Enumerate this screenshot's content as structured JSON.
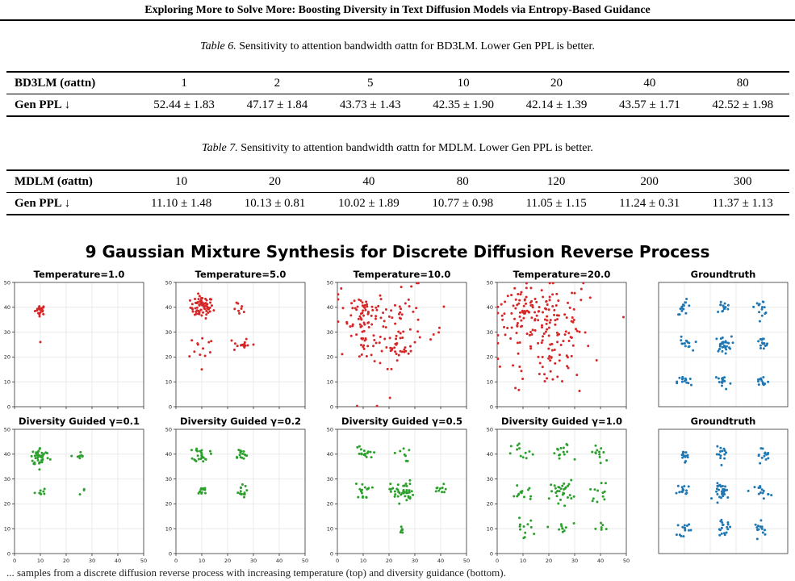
{
  "header": {
    "title": "Exploring More to Solve More: Boosting Diversity in Text Diffusion Models via Entropy-Based Guidance"
  },
  "table6": {
    "caption_label": "Table 6.",
    "caption_text": "Sensitivity to attention bandwidth σattn for BD3LM. Lower Gen PPL is better.",
    "row_header_label": "BD3LM (σattn)",
    "columns": [
      "1",
      "2",
      "5",
      "10",
      "20",
      "40",
      "80"
    ],
    "row_label": "Gen PPL ↓",
    "values": [
      "52.44 ± 1.83",
      "47.17 ± 1.84",
      "43.73 ± 1.43",
      "42.35 ± 1.90",
      "42.14 ± 1.39",
      "43.57 ± 1.71",
      "42.52 ± 1.98"
    ]
  },
  "table7": {
    "caption_label": "Table 7.",
    "caption_text": "Sensitivity to attention bandwidth σattn for MDLM. Lower Gen PPL is better.",
    "row_header_label": "MDLM (σattn)",
    "columns": [
      "10",
      "20",
      "40",
      "80",
      "120",
      "200",
      "300"
    ],
    "row_label": "Gen PPL ↓",
    "values": [
      "11.10 ± 1.48",
      "10.13 ± 0.81",
      "10.02 ± 1.89",
      "10.77 ± 0.98",
      "11.05 ± 1.15",
      "11.24 ± 0.31",
      "11.37 ± 1.13"
    ]
  },
  "figure": {
    "title": "9 Gaussian Mixture Synthesis for Discrete Diffusion Reverse Process",
    "bottom_caption": "... samples from a discrete diffusion reverse process with increasing temperature (top) and diversity guidance (bottom).",
    "colors": {
      "temperature": "#d62728",
      "guided": "#2ca02c",
      "groundtruth": "#1f77b4"
    }
  },
  "chart_data": [
    {
      "type": "scatter",
      "title": "Temperature=1.0",
      "xlim": [
        0,
        50
      ],
      "ylim": [
        0,
        50
      ],
      "xticks": [
        "0",
        "10",
        "20",
        "30",
        "40",
        "50"
      ],
      "yticks": [
        "0",
        "10",
        "20",
        "30",
        "40",
        "50"
      ],
      "grid": true,
      "series": [
        {
          "color": "#d62728",
          "clusters": [
            {
              "cx": 10,
              "cy": 39,
              "n": 22,
              "sd": 1.0
            },
            {
              "cx": 10,
              "cy": 26,
              "n": 1,
              "sd": 0
            }
          ]
        }
      ]
    },
    {
      "type": "scatter",
      "title": "Temperature=5.0",
      "xlim": [
        0,
        50
      ],
      "ylim": [
        0,
        50
      ],
      "xticks": [
        "0",
        "10",
        "20",
        "30",
        "40",
        "50"
      ],
      "yticks": [
        "0",
        "10",
        "20",
        "30",
        "40",
        "50"
      ],
      "grid": true,
      "series": [
        {
          "color": "#d62728",
          "clusters": [
            {
              "cx": 10,
              "cy": 40,
              "n": 70,
              "sd": 2.2
            },
            {
              "cx": 25,
              "cy": 39,
              "n": 8,
              "sd": 1.3
            },
            {
              "cx": 10,
              "cy": 24,
              "n": 12,
              "sd": 2.5
            },
            {
              "cx": 25,
              "cy": 25,
              "n": 14,
              "sd": 1.5
            },
            {
              "cx": 30,
              "cy": 25,
              "n": 1,
              "sd": 0
            },
            {
              "cx": 10,
              "cy": 15,
              "n": 1,
              "sd": 0
            }
          ]
        }
      ]
    },
    {
      "type": "scatter",
      "title": "Temperature=10.0",
      "xlim": [
        0,
        50
      ],
      "ylim": [
        0,
        50
      ],
      "xticks": [
        "0",
        "10",
        "20",
        "30",
        "40",
        "50"
      ],
      "yticks": [
        "0",
        "10",
        "20",
        "30",
        "40",
        "50"
      ],
      "grid": true,
      "series": [
        {
          "color": "#d62728",
          "clusters": [
            {
              "cx": 10,
              "cy": 38,
              "n": 60,
              "sd": 4.5
            },
            {
              "cx": 25,
              "cy": 38,
              "n": 20,
              "sd": 4.5
            },
            {
              "cx": 10,
              "cy": 24,
              "n": 20,
              "sd": 4
            },
            {
              "cx": 25,
              "cy": 25,
              "n": 30,
              "sd": 3
            },
            {
              "cx": 20,
              "cy": 30,
              "n": 30,
              "sd": 12
            }
          ]
        }
      ]
    },
    {
      "type": "scatter",
      "title": "Temperature=20.0",
      "xlim": [
        0,
        50
      ],
      "ylim": [
        0,
        50
      ],
      "xticks": [
        "0",
        "10",
        "20",
        "30",
        "40",
        "50"
      ],
      "yticks": [
        "0",
        "10",
        "20",
        "30",
        "40",
        "50"
      ],
      "grid": true,
      "series": [
        {
          "color": "#d62728",
          "clusters": [
            {
              "cx": 10,
              "cy": 38,
              "n": 70,
              "sd": 5
            },
            {
              "cx": 23,
              "cy": 38,
              "n": 40,
              "sd": 6
            },
            {
              "cx": 22,
              "cy": 22,
              "n": 50,
              "sd": 6
            },
            {
              "cx": 20,
              "cy": 28,
              "n": 40,
              "sd": 12
            }
          ]
        }
      ]
    },
    {
      "type": "scatter",
      "title": "Groundtruth",
      "xlim": [
        0,
        50
      ],
      "ylim": [
        0,
        50
      ],
      "xticks": [],
      "yticks": [],
      "grid": true,
      "series": [
        {
          "color": "#1f77b4",
          "clusters": [
            {
              "cx": 10,
              "cy": 40,
              "n": 14,
              "sd": 1.4
            },
            {
              "cx": 25,
              "cy": 40,
              "n": 14,
              "sd": 1.4
            },
            {
              "cx": 40,
              "cy": 40,
              "n": 14,
              "sd": 1.4
            },
            {
              "cx": 10,
              "cy": 25,
              "n": 14,
              "sd": 1.4
            },
            {
              "cx": 25,
              "cy": 25,
              "n": 30,
              "sd": 1.6
            },
            {
              "cx": 40,
              "cy": 25,
              "n": 14,
              "sd": 1.4
            },
            {
              "cx": 10,
              "cy": 10,
              "n": 14,
              "sd": 1.4
            },
            {
              "cx": 25,
              "cy": 10,
              "n": 18,
              "sd": 1.6
            },
            {
              "cx": 40,
              "cy": 10,
              "n": 14,
              "sd": 1.4
            }
          ]
        }
      ]
    },
    {
      "type": "scatter",
      "title": "Diversity Guided γ=0.1",
      "xlim": [
        0,
        50
      ],
      "ylim": [
        0,
        50
      ],
      "xticks": [
        "0",
        "10",
        "20",
        "30",
        "40",
        "50"
      ],
      "yticks": [
        "0",
        "10",
        "20",
        "30",
        "40",
        "50"
      ],
      "grid": true,
      "series": [
        {
          "color": "#2ca02c",
          "clusters": [
            {
              "cx": 10,
              "cy": 39,
              "n": 45,
              "sd": 1.8
            },
            {
              "cx": 25,
              "cy": 39,
              "n": 8,
              "sd": 1.0
            },
            {
              "cx": 10,
              "cy": 25,
              "n": 8,
              "sd": 1.0
            },
            {
              "cx": 26,
              "cy": 25,
              "n": 3,
              "sd": 1.0
            }
          ]
        }
      ]
    },
    {
      "type": "scatter",
      "title": "Diversity Guided γ=0.2",
      "xlim": [
        0,
        50
      ],
      "ylim": [
        0,
        50
      ],
      "xticks": [
        "0",
        "10",
        "20",
        "30",
        "40",
        "50"
      ],
      "yticks": [
        "0",
        "10",
        "20",
        "30",
        "40",
        "50"
      ],
      "grid": true,
      "series": [
        {
          "color": "#2ca02c",
          "clusters": [
            {
              "cx": 10,
              "cy": 40,
              "n": 25,
              "sd": 1.5
            },
            {
              "cx": 25,
              "cy": 40,
              "n": 15,
              "sd": 1.3
            },
            {
              "cx": 10,
              "cy": 25,
              "n": 12,
              "sd": 1.2
            },
            {
              "cx": 25,
              "cy": 25,
              "n": 14,
              "sd": 1.2
            }
          ]
        }
      ]
    },
    {
      "type": "scatter",
      "title": "Diversity Guided γ=0.5",
      "xlim": [
        0,
        50
      ],
      "ylim": [
        0,
        50
      ],
      "xticks": [
        "0",
        "10",
        "20",
        "30",
        "40",
        "50"
      ],
      "yticks": [
        "0",
        "10",
        "20",
        "30",
        "40",
        "50"
      ],
      "grid": true,
      "series": [
        {
          "color": "#2ca02c",
          "clusters": [
            {
              "cx": 10,
              "cy": 40,
              "n": 16,
              "sd": 1.8
            },
            {
              "cx": 25,
              "cy": 40,
              "n": 8,
              "sd": 1.5
            },
            {
              "cx": 10,
              "cy": 25,
              "n": 16,
              "sd": 1.6
            },
            {
              "cx": 25,
              "cy": 25,
              "n": 45,
              "sd": 2.2
            },
            {
              "cx": 40,
              "cy": 25,
              "n": 10,
              "sd": 1.4
            },
            {
              "cx": 25,
              "cy": 10,
              "n": 6,
              "sd": 1.0
            }
          ]
        }
      ]
    },
    {
      "type": "scatter",
      "title": "Diversity Guided γ=1.0",
      "xlim": [
        0,
        50
      ],
      "ylim": [
        0,
        50
      ],
      "xticks": [
        "0",
        "10",
        "20",
        "30",
        "40",
        "50"
      ],
      "yticks": [
        "0",
        "10",
        "20",
        "30",
        "40",
        "50"
      ],
      "grid": true,
      "series": [
        {
          "color": "#2ca02c",
          "clusters": [
            {
              "cx": 10,
              "cy": 40,
              "n": 12,
              "sd": 2.2
            },
            {
              "cx": 25,
              "cy": 40,
              "n": 14,
              "sd": 2.2
            },
            {
              "cx": 40,
              "cy": 40,
              "n": 12,
              "sd": 2.2
            },
            {
              "cx": 10,
              "cy": 25,
              "n": 14,
              "sd": 2.2
            },
            {
              "cx": 25,
              "cy": 25,
              "n": 30,
              "sd": 2.2
            },
            {
              "cx": 40,
              "cy": 25,
              "n": 12,
              "sd": 2.0
            },
            {
              "cx": 10,
              "cy": 10,
              "n": 12,
              "sd": 2.0
            },
            {
              "cx": 25,
              "cy": 10,
              "n": 10,
              "sd": 1.8
            },
            {
              "cx": 40,
              "cy": 10,
              "n": 6,
              "sd": 1.5
            }
          ]
        }
      ]
    },
    {
      "type": "scatter",
      "title": "Groundtruth",
      "xlim": [
        0,
        50
      ],
      "ylim": [
        0,
        50
      ],
      "xticks": [],
      "yticks": [],
      "grid": true,
      "series": [
        {
          "color": "#1f77b4",
          "clusters": [
            {
              "cx": 10,
              "cy": 40,
              "n": 14,
              "sd": 1.4
            },
            {
              "cx": 25,
              "cy": 40,
              "n": 14,
              "sd": 1.4
            },
            {
              "cx": 40,
              "cy": 40,
              "n": 14,
              "sd": 1.4
            },
            {
              "cx": 10,
              "cy": 25,
              "n": 14,
              "sd": 1.4
            },
            {
              "cx": 25,
              "cy": 25,
              "n": 30,
              "sd": 1.6
            },
            {
              "cx": 40,
              "cy": 25,
              "n": 14,
              "sd": 1.4
            },
            {
              "cx": 10,
              "cy": 10,
              "n": 14,
              "sd": 1.4
            },
            {
              "cx": 25,
              "cy": 10,
              "n": 18,
              "sd": 1.6
            },
            {
              "cx": 40,
              "cy": 10,
              "n": 14,
              "sd": 1.4
            }
          ]
        }
      ]
    }
  ]
}
